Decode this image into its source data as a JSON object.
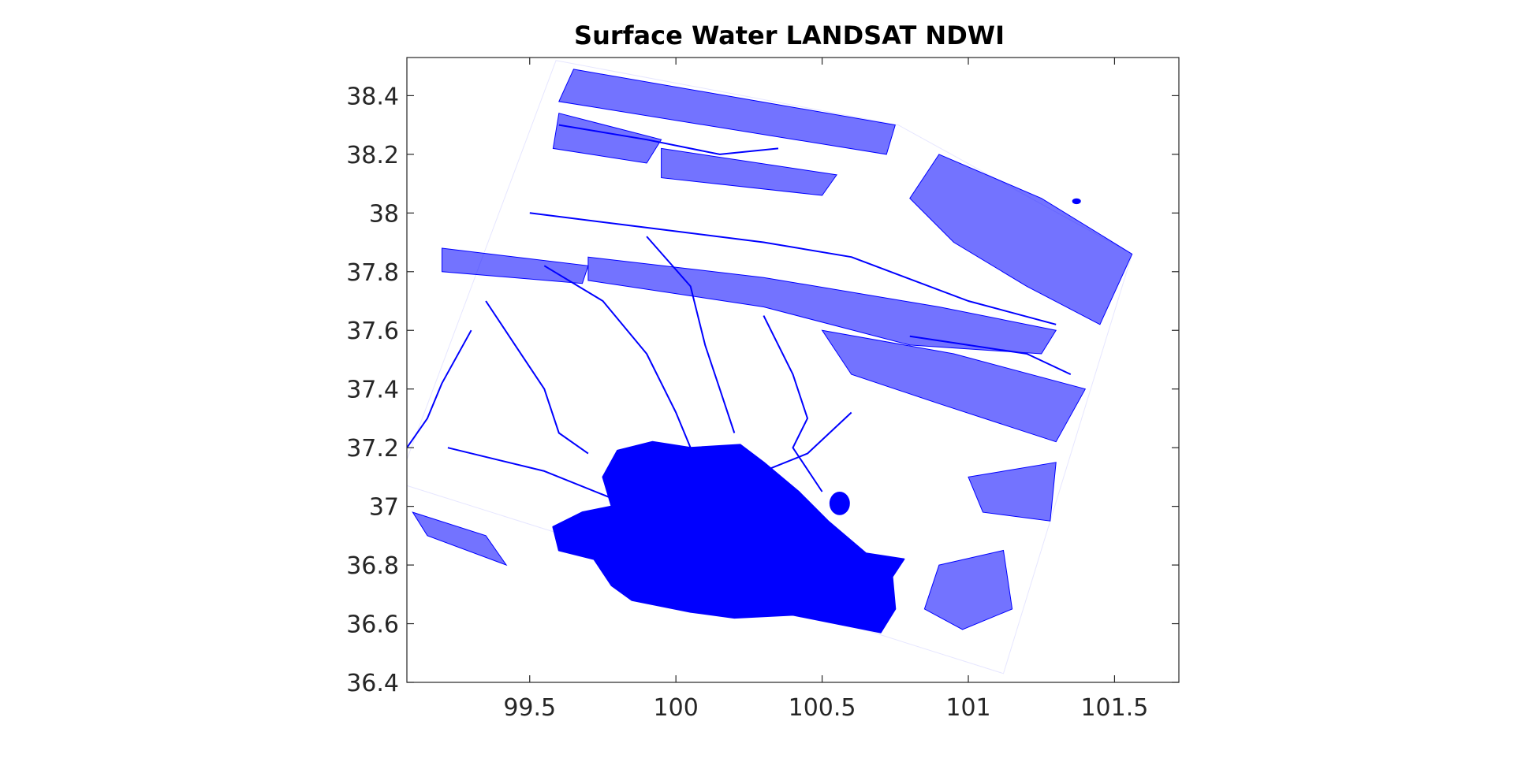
{
  "chart_data": {
    "type": "heatmap",
    "title": "Surface Water LANDSAT NDWI",
    "xlabel": "",
    "ylabel": "",
    "xlim": [
      99.08,
      101.72
    ],
    "ylim": [
      36.4,
      38.53
    ],
    "x_ticks": [
      99.5,
      100,
      100.5,
      101,
      101.5
    ],
    "x_tick_labels": [
      "99.5",
      "100",
      "100.5",
      "101",
      "101.5"
    ],
    "y_ticks": [
      36.4,
      36.6,
      36.8,
      37,
      37.2,
      37.4,
      37.6,
      37.8,
      38,
      38.2,
      38.4
    ],
    "y_tick_labels": [
      "36.4",
      "36.6",
      "36.8",
      "37",
      "37.2",
      "37.4",
      "37.6",
      "37.8",
      "38",
      "38.2",
      "38.4"
    ],
    "grid": false,
    "water_color": "#0000ff",
    "background_color": "#ffffff",
    "scene_footprint": [
      [
        99.59,
        38.52
      ],
      [
        100.76,
        38.3
      ],
      [
        101.56,
        37.86
      ],
      [
        101.12,
        36.43
      ],
      [
        99.05,
        37.08
      ]
    ],
    "lake": [
      [
        99.8,
        37.19
      ],
      [
        99.92,
        37.22
      ],
      [
        100.05,
        37.2
      ],
      [
        100.22,
        37.21
      ],
      [
        100.3,
        37.15
      ],
      [
        100.42,
        37.05
      ],
      [
        100.52,
        36.95
      ],
      [
        100.65,
        36.84
      ],
      [
        100.78,
        36.82
      ],
      [
        100.74,
        36.76
      ],
      [
        100.75,
        36.65
      ],
      [
        100.7,
        36.57
      ],
      [
        100.55,
        36.6
      ],
      [
        100.4,
        36.63
      ],
      [
        100.2,
        36.62
      ],
      [
        100.05,
        36.64
      ],
      [
        99.85,
        36.68
      ],
      [
        99.78,
        36.73
      ],
      [
        99.72,
        36.82
      ],
      [
        99.6,
        36.85
      ],
      [
        99.58,
        36.93
      ],
      [
        99.68,
        36.98
      ],
      [
        99.78,
        37.0
      ],
      [
        99.75,
        37.1
      ]
    ],
    "small_lakes": [
      {
        "cx": 100.56,
        "cy": 37.01,
        "rx": 0.035,
        "ry": 0.04
      },
      {
        "cx": 101.37,
        "cy": 38.04,
        "rx": 0.015,
        "ry": 0.01
      }
    ],
    "water_bands": [
      {
        "name": "northern-ridge",
        "poly": [
          [
            99.65,
            38.49
          ],
          [
            100.75,
            38.3
          ],
          [
            100.72,
            38.2
          ],
          [
            99.6,
            38.38
          ]
        ]
      },
      {
        "name": "north-west-ridge",
        "poly": [
          [
            99.6,
            38.34
          ],
          [
            99.95,
            38.25
          ],
          [
            99.9,
            38.17
          ],
          [
            99.58,
            38.22
          ]
        ]
      },
      {
        "name": "north-central",
        "poly": [
          [
            99.95,
            38.22
          ],
          [
            100.55,
            38.13
          ],
          [
            100.5,
            38.06
          ],
          [
            99.95,
            38.12
          ]
        ]
      },
      {
        "name": "north-east-ridge",
        "poly": [
          [
            100.9,
            38.2
          ],
          [
            101.25,
            38.05
          ],
          [
            101.56,
            37.86
          ],
          [
            101.45,
            37.62
          ],
          [
            101.2,
            37.75
          ],
          [
            100.95,
            37.9
          ],
          [
            100.8,
            38.05
          ]
        ]
      },
      {
        "name": "mid-ridge",
        "poly": [
          [
            99.7,
            37.85
          ],
          [
            100.3,
            37.78
          ],
          [
            100.9,
            37.68
          ],
          [
            101.3,
            37.6
          ],
          [
            101.25,
            37.52
          ],
          [
            100.8,
            37.55
          ],
          [
            100.3,
            37.68
          ],
          [
            99.7,
            37.77
          ]
        ]
      },
      {
        "name": "west-ridge",
        "poly": [
          [
            99.2,
            37.88
          ],
          [
            99.7,
            37.82
          ],
          [
            99.68,
            37.76
          ],
          [
            99.2,
            37.8
          ]
        ]
      },
      {
        "name": "south-east-mountains",
        "poly": [
          [
            100.5,
            37.6
          ],
          [
            100.95,
            37.52
          ],
          [
            101.4,
            37.4
          ],
          [
            101.3,
            37.22
          ],
          [
            100.9,
            37.35
          ],
          [
            100.6,
            37.45
          ]
        ]
      },
      {
        "name": "east-patch",
        "poly": [
          [
            100.9,
            36.8
          ],
          [
            101.12,
            36.85
          ],
          [
            101.15,
            36.65
          ],
          [
            100.98,
            36.58
          ],
          [
            100.85,
            36.65
          ]
        ]
      },
      {
        "name": "east-mid-patch",
        "poly": [
          [
            101.0,
            37.1
          ],
          [
            101.3,
            37.15
          ],
          [
            101.28,
            36.95
          ],
          [
            101.05,
            36.98
          ]
        ]
      },
      {
        "name": "south-west-corner",
        "poly": [
          [
            99.1,
            36.98
          ],
          [
            99.35,
            36.9
          ],
          [
            99.42,
            36.8
          ],
          [
            99.15,
            36.9
          ]
        ]
      }
    ],
    "rivers": [
      [
        [
          99.22,
          37.2
        ],
        [
          99.55,
          37.12
        ],
        [
          99.8,
          37.02
        ],
        [
          99.88,
          36.98
        ]
      ],
      [
        [
          99.55,
          37.82
        ],
        [
          99.75,
          37.7
        ],
        [
          99.9,
          37.52
        ],
        [
          100.0,
          37.32
        ],
        [
          100.05,
          37.2
        ]
      ],
      [
        [
          99.35,
          37.7
        ],
        [
          99.45,
          37.55
        ],
        [
          99.55,
          37.4
        ],
        [
          99.6,
          37.25
        ],
        [
          99.7,
          37.18
        ]
      ],
      [
        [
          99.9,
          37.92
        ],
        [
          100.05,
          37.75
        ],
        [
          100.1,
          37.55
        ],
        [
          100.15,
          37.4
        ],
        [
          100.2,
          37.25
        ]
      ],
      [
        [
          99.3,
          37.6
        ],
        [
          99.2,
          37.42
        ],
        [
          99.15,
          37.3
        ],
        [
          99.08,
          37.2
        ]
      ],
      [
        [
          100.3,
          37.65
        ],
        [
          100.4,
          37.45
        ],
        [
          100.45,
          37.3
        ],
        [
          100.4,
          37.2
        ],
        [
          100.5,
          37.05
        ]
      ],
      [
        [
          100.6,
          37.32
        ],
        [
          100.45,
          37.18
        ],
        [
          100.3,
          37.12
        ]
      ],
      [
        [
          99.5,
          38.0
        ],
        [
          99.9,
          37.95
        ],
        [
          100.3,
          37.9
        ],
        [
          100.6,
          37.85
        ],
        [
          101.0,
          37.7
        ],
        [
          101.3,
          37.62
        ]
      ],
      [
        [
          99.6,
          38.3
        ],
        [
          99.9,
          38.25
        ],
        [
          100.15,
          38.2
        ],
        [
          100.35,
          38.22
        ]
      ],
      [
        [
          100.8,
          37.58
        ],
        [
          101.0,
          37.55
        ],
        [
          101.2,
          37.52
        ],
        [
          101.35,
          37.45
        ]
      ]
    ]
  }
}
